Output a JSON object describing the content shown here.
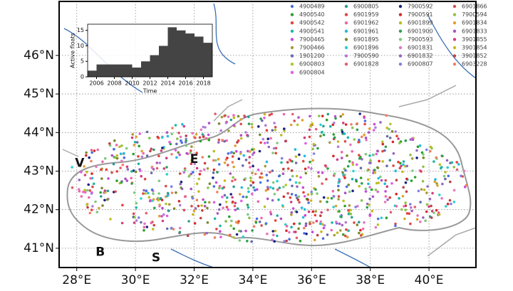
{
  "map": {
    "xlim": [
      27.4,
      41.6
    ],
    "ylim": [
      40.5,
      47.4
    ],
    "xticks": [
      {
        "value": 28,
        "label": "28°E"
      },
      {
        "value": 30,
        "label": "30°E"
      },
      {
        "value": 32,
        "label": "32°E"
      },
      {
        "value": 34,
        "label": "34°E"
      },
      {
        "value": 36,
        "label": "36°E"
      },
      {
        "value": 38,
        "label": "38°E"
      },
      {
        "value": 40,
        "label": "40°E"
      }
    ],
    "yticks": [
      {
        "value": 41,
        "label": "41°N"
      },
      {
        "value": 42,
        "label": "42°N"
      },
      {
        "value": 43,
        "label": "43°N"
      },
      {
        "value": 44,
        "label": "44°N"
      },
      {
        "value": 45,
        "label": "45°N"
      },
      {
        "value": 46,
        "label": "46°N"
      }
    ],
    "annotations": [
      {
        "text": "V",
        "lon": 28.1,
        "lat": 43.2
      },
      {
        "text": "E",
        "lon": 32.0,
        "lat": 43.3
      },
      {
        "text": "B",
        "lon": 28.8,
        "lat": 40.9
      },
      {
        "text": "S",
        "lon": 30.7,
        "lat": 40.75
      }
    ],
    "legend": [
      {
        "name": "4900489",
        "color": "#4a6fe3"
      },
      {
        "name": "4900540",
        "color": "#2ca02c"
      },
      {
        "name": "4900542",
        "color": "#e8403b"
      },
      {
        "name": "4900541",
        "color": "#1fb5a6"
      },
      {
        "name": "7900465",
        "color": "#c74ad6"
      },
      {
        "name": "7900466",
        "color": "#a59a3a"
      },
      {
        "name": "1901200",
        "color": "#6a6aa8"
      },
      {
        "name": "6900803",
        "color": "#b5c42b"
      },
      {
        "name": "6900804",
        "color": "#e05ce0"
      },
      {
        "name": "6900805",
        "color": "#2a9d8f"
      },
      {
        "name": "6901959",
        "color": "#e04545"
      },
      {
        "name": "6901962",
        "color": "#ee66aa"
      },
      {
        "name": "6901961",
        "color": "#22bbdd"
      },
      {
        "name": "6901895",
        "color": "#7a8a2a"
      },
      {
        "name": "6901896",
        "color": "#2ccfcf"
      },
      {
        "name": "7900590",
        "color": "#b07cd8"
      },
      {
        "name": "6901828",
        "color": "#e06070"
      },
      {
        "name": "7900592",
        "color": "#1a237e"
      },
      {
        "name": "7900591",
        "color": "#d62728"
      },
      {
        "name": "6901899",
        "color": "#bcbd22"
      },
      {
        "name": "6901900",
        "color": "#2ca050"
      },
      {
        "name": "7900593",
        "color": "#7fc97f"
      },
      {
        "name": "6901831",
        "color": "#e377c2"
      },
      {
        "name": "6901832",
        "color": "#9467bd"
      },
      {
        "name": "6900807",
        "color": "#8080e0"
      },
      {
        "name": "6901866",
        "color": "#d45050"
      },
      {
        "name": "7900594",
        "color": "#8bc34a"
      },
      {
        "name": "6901834",
        "color": "#e0a030"
      },
      {
        "name": "6901833",
        "color": "#b050c0"
      },
      {
        "name": "3901855",
        "color": "#d04080"
      },
      {
        "name": "3901854",
        "color": "#c8b820"
      },
      {
        "name": "3901852",
        "color": "#c04040"
      },
      {
        "name": "6903228",
        "color": "#f08060"
      }
    ]
  },
  "chart_data": {
    "type": "histogram",
    "xlabel": "Time",
    "ylabel": "Active floats",
    "bins": [
      2005,
      2006,
      2007,
      2008,
      2009,
      2010,
      2011,
      2012,
      2013,
      2014,
      2015,
      2016,
      2017,
      2018,
      2019
    ],
    "values": [
      2,
      4,
      4,
      4,
      4,
      3,
      5,
      7,
      10,
      16,
      15,
      14,
      13,
      11
    ],
    "color": "#444444",
    "xlim": [
      2005,
      2019
    ],
    "ylim": [
      0,
      17
    ],
    "xticks": [
      2006,
      2008,
      2010,
      2012,
      2014,
      2016,
      2018
    ],
    "yticks": [
      0,
      5,
      10,
      15
    ]
  }
}
